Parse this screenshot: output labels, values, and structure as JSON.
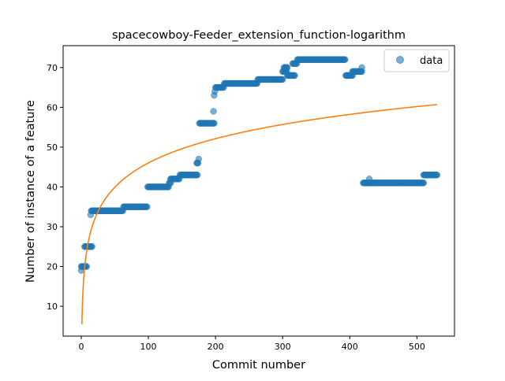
{
  "chart_data": {
    "type": "scatter",
    "title": "spacecowboy-Feeder_extension_function-logarithm",
    "xlabel": "Commit number",
    "ylabel": "Number of instance of a feature",
    "xlim": [
      -27,
      556
    ],
    "ylim": [
      2.5,
      75.5
    ],
    "xticks": [
      0,
      100,
      200,
      300,
      400,
      500
    ],
    "yticks": [
      10,
      20,
      30,
      40,
      50,
      60,
      70
    ],
    "legend": {
      "position": "top-right",
      "entries": [
        "data"
      ]
    },
    "grid": false,
    "series": [
      {
        "name": "data",
        "kind": "scatter",
        "color": "#1f77b4",
        "segments": [
          {
            "x_start": 0,
            "x_end": 0,
            "y": 19
          },
          {
            "x_start": 0,
            "x_end": 8,
            "y": 20
          },
          {
            "x_start": 5,
            "x_end": 16,
            "y": 25
          },
          {
            "x_start": 14,
            "x_end": 14,
            "y": 33
          },
          {
            "x_start": 15,
            "x_end": 62,
            "y": 34
          },
          {
            "x_start": 63,
            "x_end": 98,
            "y": 35
          },
          {
            "x_start": 99,
            "x_end": 130,
            "y": 40
          },
          {
            "x_start": 131,
            "x_end": 133,
            "y": 41
          },
          {
            "x_start": 133,
            "x_end": 146,
            "y": 42
          },
          {
            "x_start": 147,
            "x_end": 173,
            "y": 43
          },
          {
            "x_start": 172,
            "x_end": 174,
            "y": 46
          },
          {
            "x_start": 175,
            "x_end": 175,
            "y": 47
          },
          {
            "x_start": 176,
            "x_end": 198,
            "y": 56
          },
          {
            "x_start": 197,
            "x_end": 197,
            "y": 59
          },
          {
            "x_start": 198,
            "x_end": 198,
            "y": 63
          },
          {
            "x_start": 199,
            "x_end": 199,
            "y": 64
          },
          {
            "x_start": 200,
            "x_end": 212,
            "y": 65
          },
          {
            "x_start": 213,
            "x_end": 262,
            "y": 66
          },
          {
            "x_start": 263,
            "x_end": 300,
            "y": 67
          },
          {
            "x_start": 300,
            "x_end": 306,
            "y": 69
          },
          {
            "x_start": 302,
            "x_end": 307,
            "y": 70
          },
          {
            "x_start": 307,
            "x_end": 318,
            "y": 68
          },
          {
            "x_start": 315,
            "x_end": 321,
            "y": 71
          },
          {
            "x_start": 322,
            "x_end": 393,
            "y": 72
          },
          {
            "x_start": 394,
            "x_end": 404,
            "y": 68
          },
          {
            "x_start": 404,
            "x_end": 418,
            "y": 69
          },
          {
            "x_start": 418,
            "x_end": 418,
            "y": 70
          },
          {
            "x_start": 420,
            "x_end": 430,
            "y": 41
          },
          {
            "x_start": 429,
            "x_end": 429,
            "y": 42
          },
          {
            "x_start": 430,
            "x_end": 510,
            "y": 41
          },
          {
            "x_start": 510,
            "x_end": 530,
            "y": 43
          }
        ]
      },
      {
        "name": "",
        "kind": "line",
        "color": "#ff7f0e",
        "function": "a + b*ln(x)",
        "a": 5.5,
        "b": 8.8,
        "x_range": [
          1,
          530
        ]
      }
    ]
  }
}
